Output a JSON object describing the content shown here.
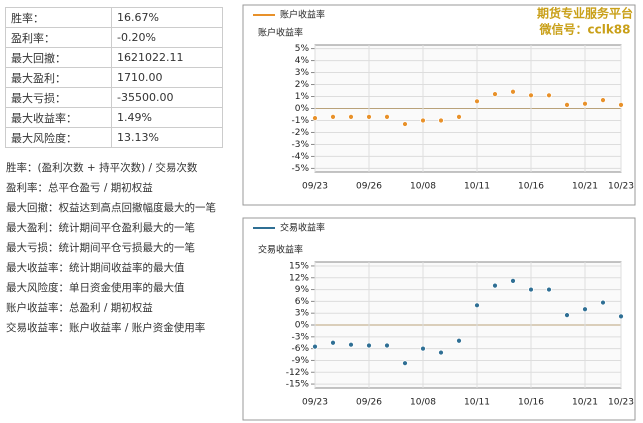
{
  "table": {
    "rows": [
      [
        "胜率：",
        "16.67%"
      ],
      [
        "盈利率：",
        "-0.20%"
      ],
      [
        "最大回撤：",
        "1621022.11"
      ],
      [
        "最大盈利：",
        "1710.00"
      ],
      [
        "最大亏损：",
        "-35500.00"
      ],
      [
        "最大收益率：",
        "1.49%"
      ],
      [
        "最大风险度：",
        "13.13%"
      ]
    ]
  },
  "notes": [
    "胜率：(盈利次数 + 持平次数) / 交易次数",
    "盈利率：总平仓盈亏 / 期初权益",
    "最大回撤：权益达到高点回撤幅度最大的一笔",
    "最大盈利：统计期间平仓盈利最大的一笔",
    "最大亏损：统计期间平仓亏损最大的一笔",
    "最大收益率：统计期间收益率的最大值",
    "最大风险度：单日资金使用率的最大值",
    "账户收益率：总盈利 / 期初权益",
    "交易收益率：账户收益率 / 账户资金使用率"
  ],
  "watermark": [
    "期货专业服务平台",
    "微信号：cclk88"
  ],
  "chart_data": [
    {
      "type": "line",
      "y_axis_label": "账户收益率",
      "categories": [
        "09/23",
        null,
        null,
        "09/26",
        null,
        null,
        "10/08",
        null,
        null,
        "10/11",
        null,
        null,
        "10/16",
        null,
        null,
        "10/21",
        null,
        "10/23"
      ],
      "series": [
        {
          "name": "账户收益率",
          "color": "#e8912a",
          "values": [
            -0.8,
            -0.7,
            -0.7,
            -0.7,
            -0.7,
            -1.3,
            -1.0,
            -1.0,
            -0.7,
            0.6,
            1.2,
            1.4,
            1.1,
            1.1,
            0.3,
            0.4,
            0.7,
            0.3
          ]
        }
      ],
      "ylim": [
        -5.3,
        5.3
      ],
      "yticks": [
        {
          "value": 5,
          "label": "5%"
        },
        {
          "value": 4,
          "label": "4%"
        },
        {
          "value": 3,
          "label": "3%"
        },
        {
          "value": 2,
          "label": "2%"
        },
        {
          "value": 1,
          "label": "1%"
        },
        {
          "value": 0,
          "label": "0%"
        },
        {
          "value": -1,
          "label": "-1%"
        },
        {
          "value": -2,
          "label": "-2%"
        },
        {
          "value": -3,
          "label": "-3%"
        },
        {
          "value": -4,
          "label": "-4%"
        },
        {
          "value": -5,
          "label": "-5%"
        }
      ],
      "grid": true
    },
    {
      "type": "line",
      "y_axis_label": "交易收益率",
      "categories": [
        "09/23",
        null,
        null,
        "09/26",
        null,
        null,
        "10/08",
        null,
        null,
        "10/11",
        null,
        null,
        "10/16",
        null,
        null,
        "10/21",
        null,
        "10/23"
      ],
      "series": [
        {
          "name": "交易收益率",
          "color": "#2f6f94",
          "values": [
            -5.5,
            -4.5,
            -5,
            -5.2,
            -5.2,
            -9.7,
            -6,
            -7,
            -4,
            5,
            10,
            11.2,
            9,
            9,
            2.5,
            4,
            5.7,
            2.2
          ]
        }
      ],
      "ylim": [
        -16,
        16
      ],
      "yticks": [
        {
          "value": 15,
          "label": "15%"
        },
        {
          "value": 12,
          "label": "12%"
        },
        {
          "value": 9,
          "label": "9%"
        },
        {
          "value": 6,
          "label": "6%"
        },
        {
          "value": 3,
          "label": "3%"
        },
        {
          "value": 0,
          "label": "0%"
        },
        {
          "value": -3,
          "label": "-3%"
        },
        {
          "value": -6,
          "label": "-6%"
        },
        {
          "value": -9,
          "label": "-9%"
        },
        {
          "value": -12,
          "label": "-12%"
        },
        {
          "value": -15,
          "label": "-15%"
        }
      ],
      "grid": true
    }
  ]
}
